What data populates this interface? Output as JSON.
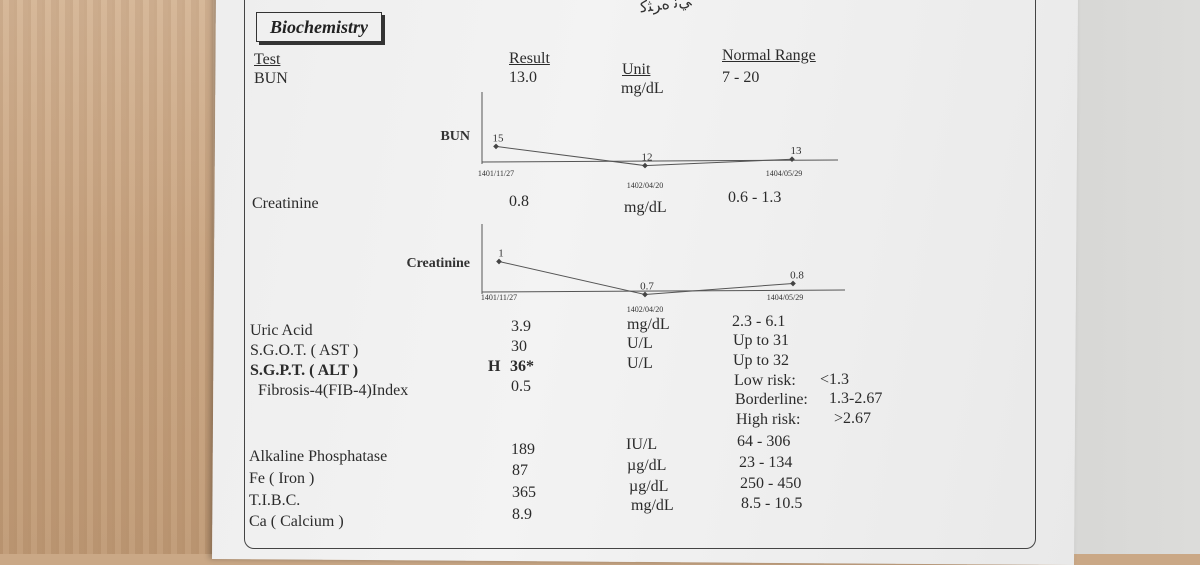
{
  "header": {
    "section_title": "Biochemistry",
    "top_text": "ﻲﻧ ﻩﺮﺜﻛ"
  },
  "columns": {
    "test": "Test",
    "result": "Result",
    "unit": "Unit",
    "normal_range": "Normal Range"
  },
  "rows": {
    "bun": {
      "test": "BUN",
      "result": "13.0",
      "unit": "mg/dL",
      "range": "7 - 20"
    },
    "creatinine": {
      "test": "Creatinine",
      "result": "0.8",
      "unit": "mg/dL",
      "range": "0.6 - 1.3"
    },
    "uric_acid": {
      "test": "Uric Acid",
      "result": "3.9",
      "unit": "mg/dL",
      "range": "2.3 - 6.1"
    },
    "sgot": {
      "test": "S.G.O.T. ( AST )",
      "result": "30",
      "unit": "U/L",
      "range": "Up to 31"
    },
    "sgpt": {
      "test": "S.G.P.T. ( ALT )",
      "flag": "H",
      "result": "36*",
      "unit": "U/L",
      "range": "Up to 32"
    },
    "fib4": {
      "test": "Fibrosis-4(FIB-4)Index",
      "result": "0.5",
      "low_label": "Low risk:",
      "low_value": "<1.3",
      "border_label": "Borderline:",
      "border_value": "1.3-2.67",
      "high_label": "High risk:",
      "high_value": ">2.67"
    },
    "alp": {
      "test": "Alkaline Phosphatase",
      "result": "189",
      "unit": "IU/L",
      "range": "64 - 306"
    },
    "fe": {
      "test": "Fe ( Iron )",
      "result": "87",
      "unit": "µg/dL",
      "range": "23 - 134"
    },
    "tibc": {
      "test": "T.I.B.C.",
      "result": "365",
      "unit": "µg/dL",
      "range": "250 - 450"
    },
    "ca": {
      "test": "Ca ( Calcium )",
      "result": "8.9",
      "unit": "mg/dL",
      "range": "8.5 - 10.5"
    }
  },
  "chart_data": [
    {
      "type": "line",
      "title": "BUN",
      "x": [
        "1401/11/27",
        "1402/04/20",
        "1404/05/29"
      ],
      "values": [
        15,
        12,
        13
      ],
      "value_labels": [
        "15",
        "12",
        "13"
      ],
      "ylim": [
        11,
        16
      ]
    },
    {
      "type": "line",
      "title": "Creatinine",
      "x": [
        "1401/11/27",
        "1402/04/20",
        "1404/05/29"
      ],
      "values": [
        1,
        0.7,
        0.8
      ],
      "value_labels": [
        "1",
        "0.7",
        "0.8"
      ],
      "ylim": [
        0.65,
        1.05
      ]
    }
  ]
}
